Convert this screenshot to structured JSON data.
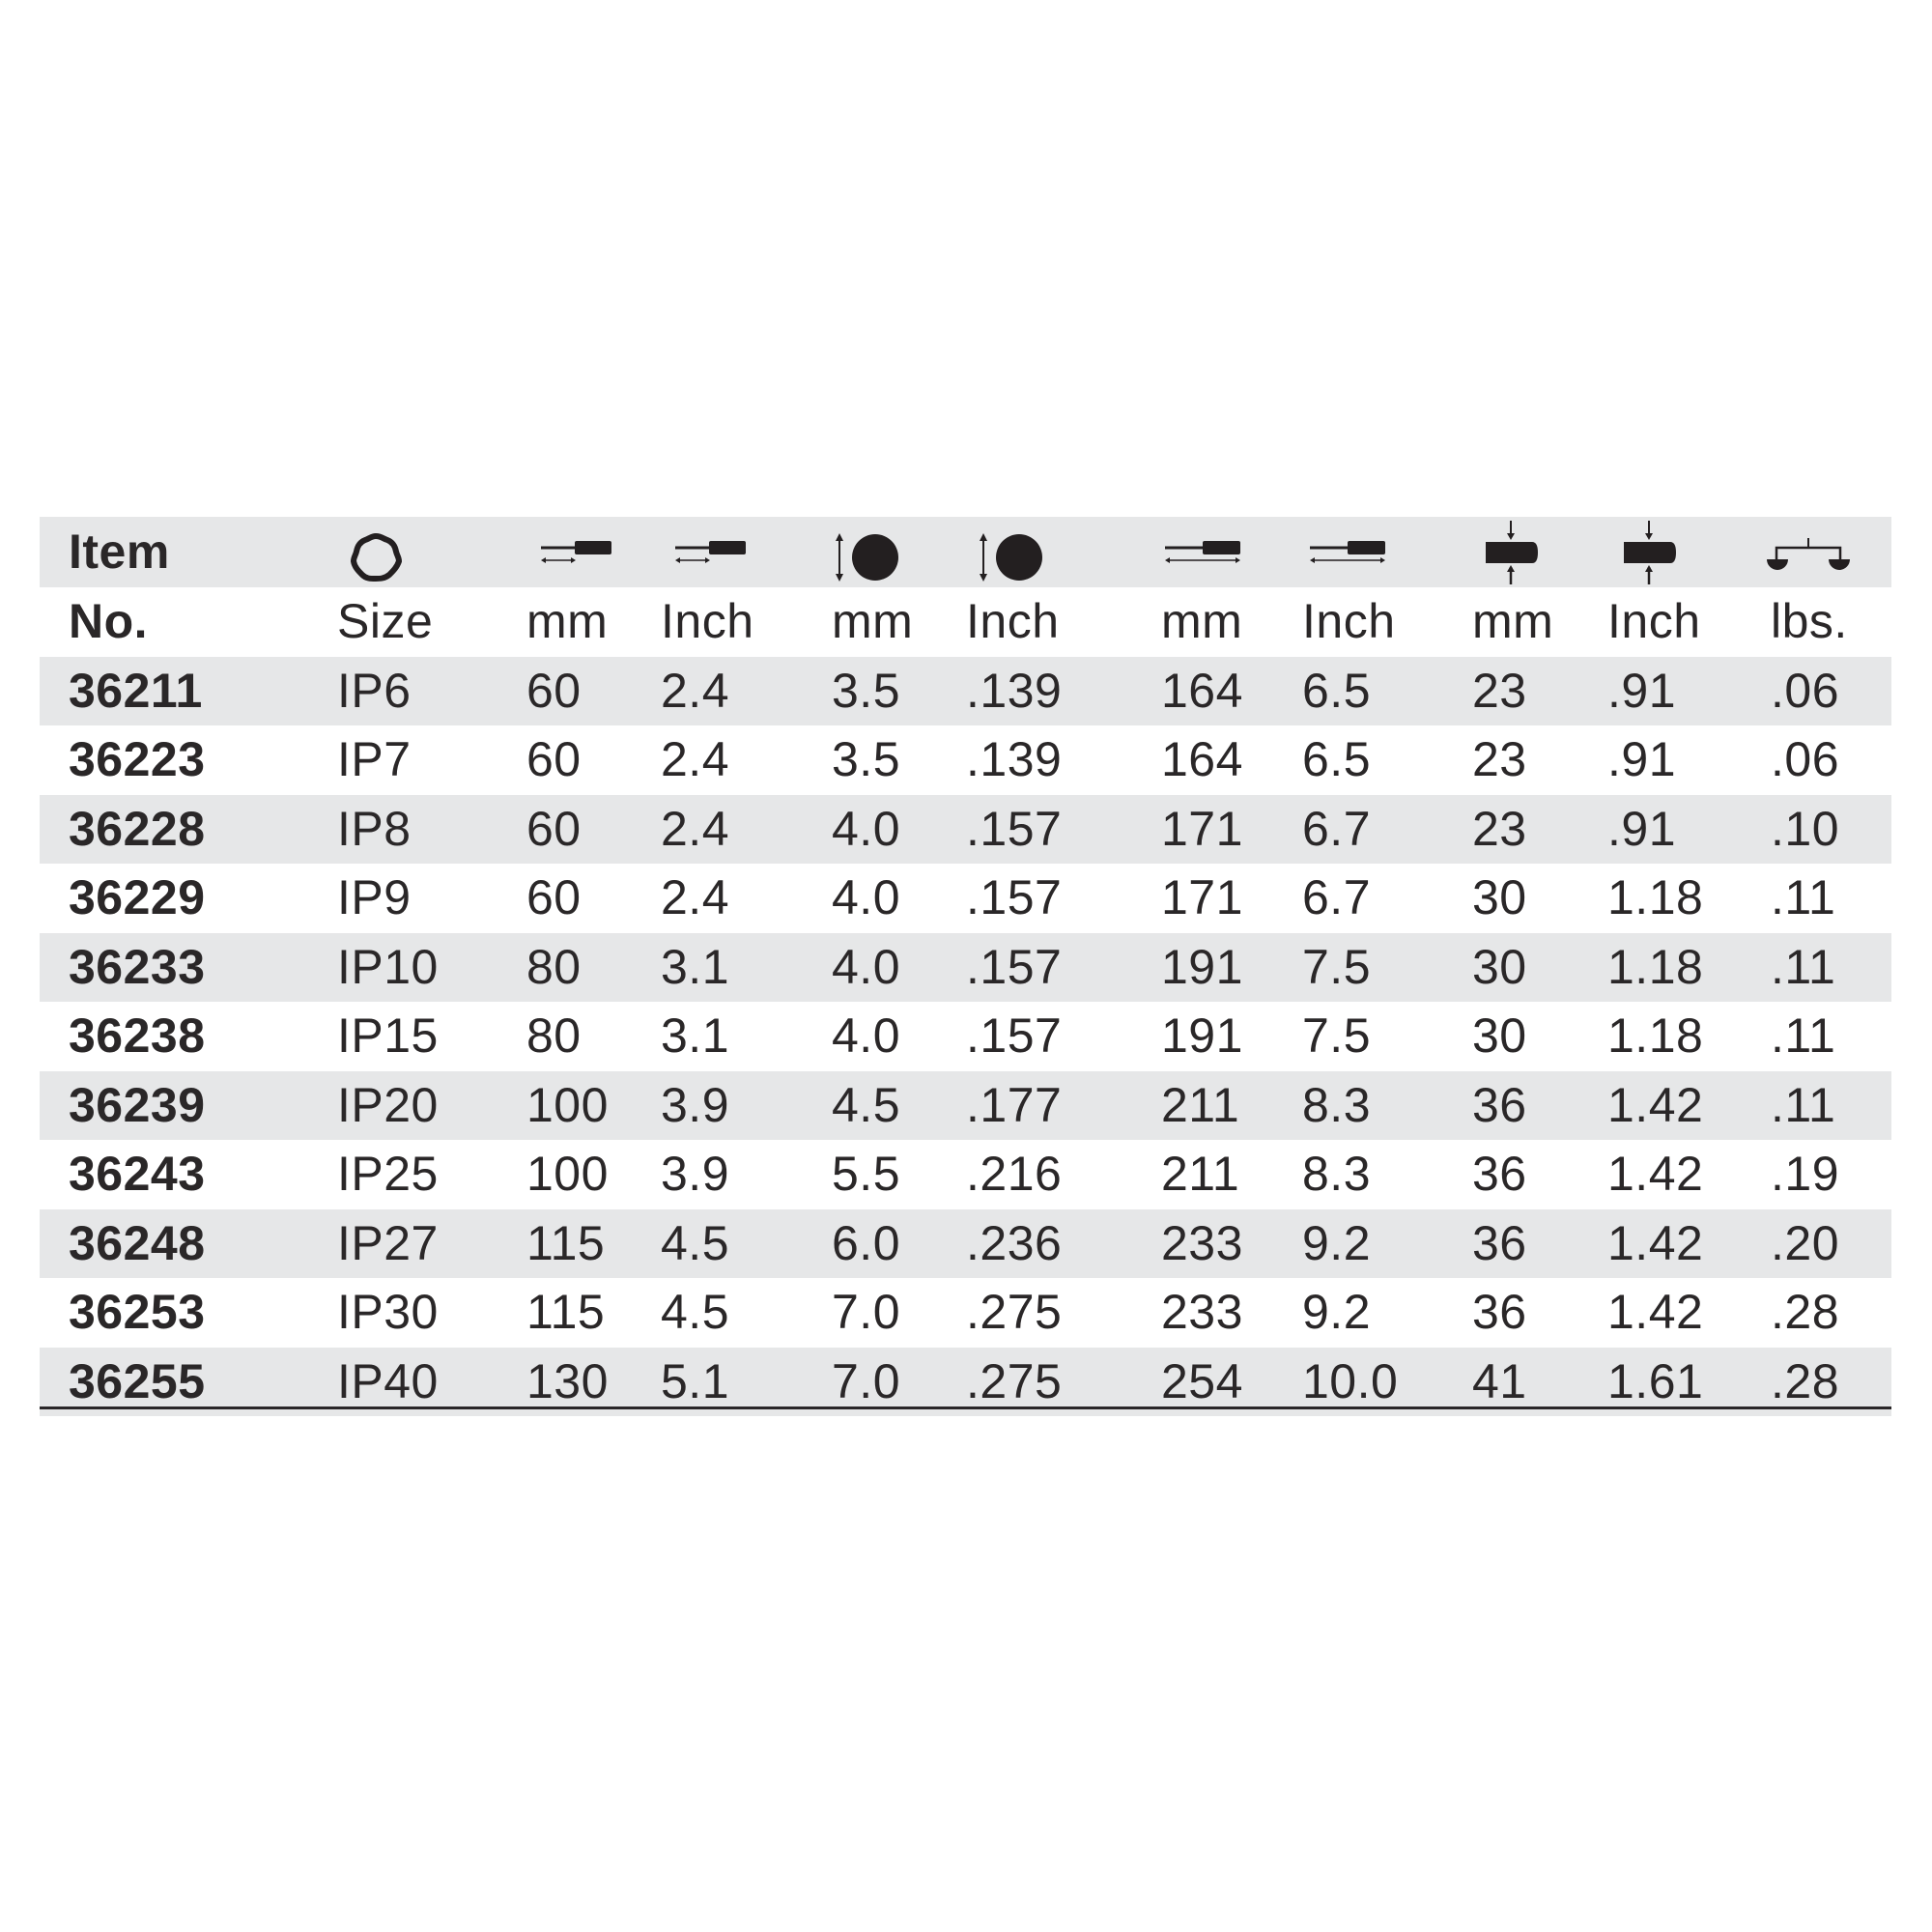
{
  "header": {
    "row1": {
      "item": "Item"
    },
    "icons": [
      "torx-plus-profile-icon",
      "blade-length-icon",
      "blade-length-icon",
      "blade-diameter-icon",
      "blade-diameter-icon",
      "overall-length-icon",
      "overall-length-icon",
      "handle-diameter-icon",
      "handle-diameter-icon",
      "weight-scale-icon"
    ],
    "row2": [
      "No.",
      "Size",
      "mm",
      "Inch",
      "mm",
      "Inch",
      "mm",
      "Inch",
      "mm",
      "Inch",
      "lbs."
    ]
  },
  "colors": {
    "row_shade": "#e6e7e8",
    "text": "#2a2728"
  },
  "rows": [
    [
      "36211",
      "IP6",
      "60",
      "2.4",
      "3.5",
      ".139",
      "164",
      "6.5",
      "23",
      ".91",
      ".06"
    ],
    [
      "36223",
      "IP7",
      "60",
      "2.4",
      "3.5",
      ".139",
      "164",
      "6.5",
      "23",
      ".91",
      ".06"
    ],
    [
      "36228",
      "IP8",
      "60",
      "2.4",
      "4.0",
      ".157",
      "171",
      "6.7",
      "23",
      ".91",
      ".10"
    ],
    [
      "36229",
      "IP9",
      "60",
      "2.4",
      "4.0",
      ".157",
      "171",
      "6.7",
      "30",
      "1.18",
      ".11"
    ],
    [
      "36233",
      "IP10",
      "80",
      "3.1",
      "4.0",
      ".157",
      "191",
      "7.5",
      "30",
      "1.18",
      ".11"
    ],
    [
      "36238",
      "IP15",
      "80",
      "3.1",
      "4.0",
      ".157",
      "191",
      "7.5",
      "30",
      "1.18",
      ".11"
    ],
    [
      "36239",
      "IP20",
      "100",
      "3.9",
      "4.5",
      ".177",
      "211",
      "8.3",
      "36",
      "1.42",
      ".11"
    ],
    [
      "36243",
      "IP25",
      "100",
      "3.9",
      "5.5",
      ".216",
      "211",
      "8.3",
      "36",
      "1.42",
      ".19"
    ],
    [
      "36248",
      "IP27",
      "115",
      "4.5",
      "6.0",
      ".236",
      "233",
      "9.2",
      "36",
      "1.42",
      ".20"
    ],
    [
      "36253",
      "IP30",
      "115",
      "4.5",
      "7.0",
      ".275",
      "233",
      "9.2",
      "36",
      "1.42",
      ".28"
    ],
    [
      "36255",
      "IP40",
      "130",
      "5.1",
      "7.0",
      ".275",
      "254",
      "10.0",
      "41",
      "1.61",
      ".28"
    ]
  ]
}
